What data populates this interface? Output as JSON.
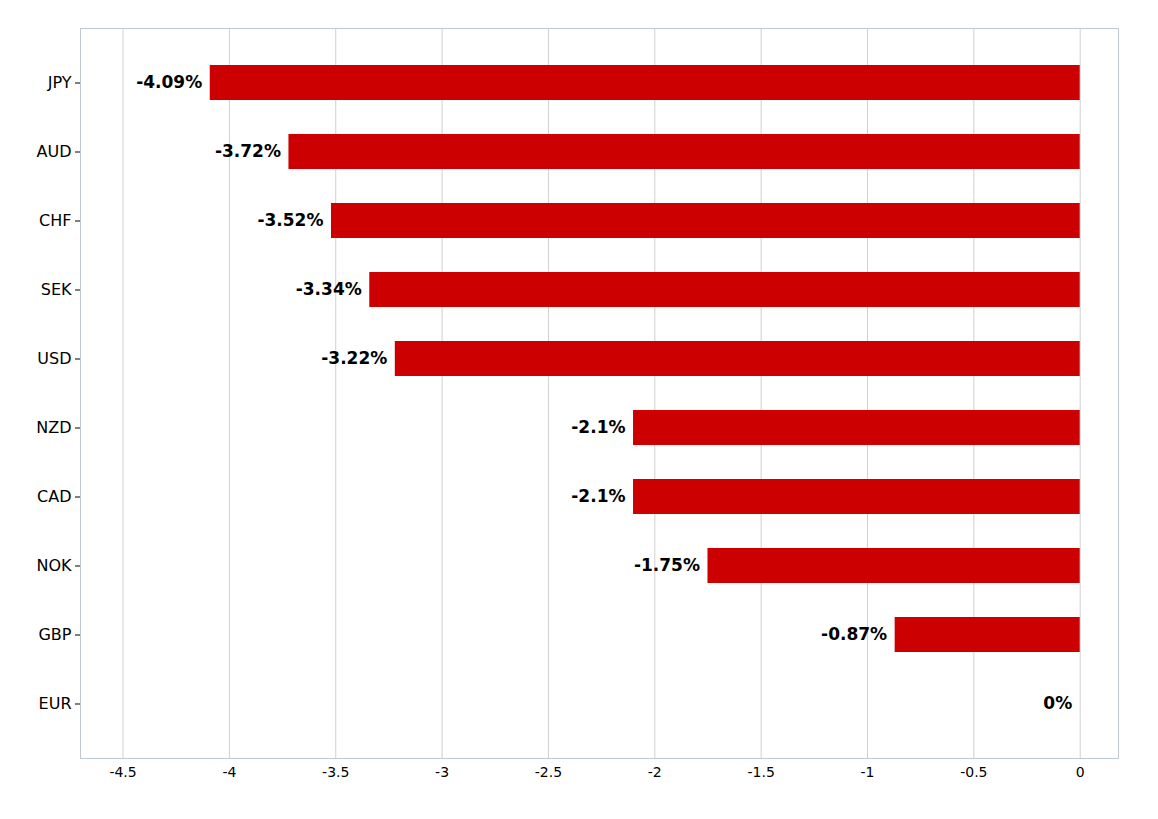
{
  "chart_data": {
    "type": "bar",
    "orientation": "horizontal",
    "categories": [
      "JPY",
      "AUD",
      "CHF",
      "SEK",
      "USD",
      "NZD",
      "CAD",
      "NOK",
      "GBP",
      "EUR"
    ],
    "values": [
      -4.09,
      -3.72,
      -3.52,
      -3.34,
      -3.22,
      -2.1,
      -2.1,
      -1.75,
      -0.87,
      0.0
    ],
    "value_labels": [
      "-4.09%",
      "-3.72%",
      "-3.52%",
      "-3.34%",
      "-3.22%",
      "-2.1%",
      "-2.1%",
      "-1.75%",
      "-0.87%",
      "0%"
    ],
    "data_labels": true,
    "color": "#cc0000",
    "xlim": [
      -4.7,
      0.18
    ],
    "xticks": [
      -4.5,
      -4,
      -3.5,
      -3,
      -2.5,
      -2,
      -1.5,
      -1,
      -0.5,
      0
    ],
    "grid": true
  }
}
